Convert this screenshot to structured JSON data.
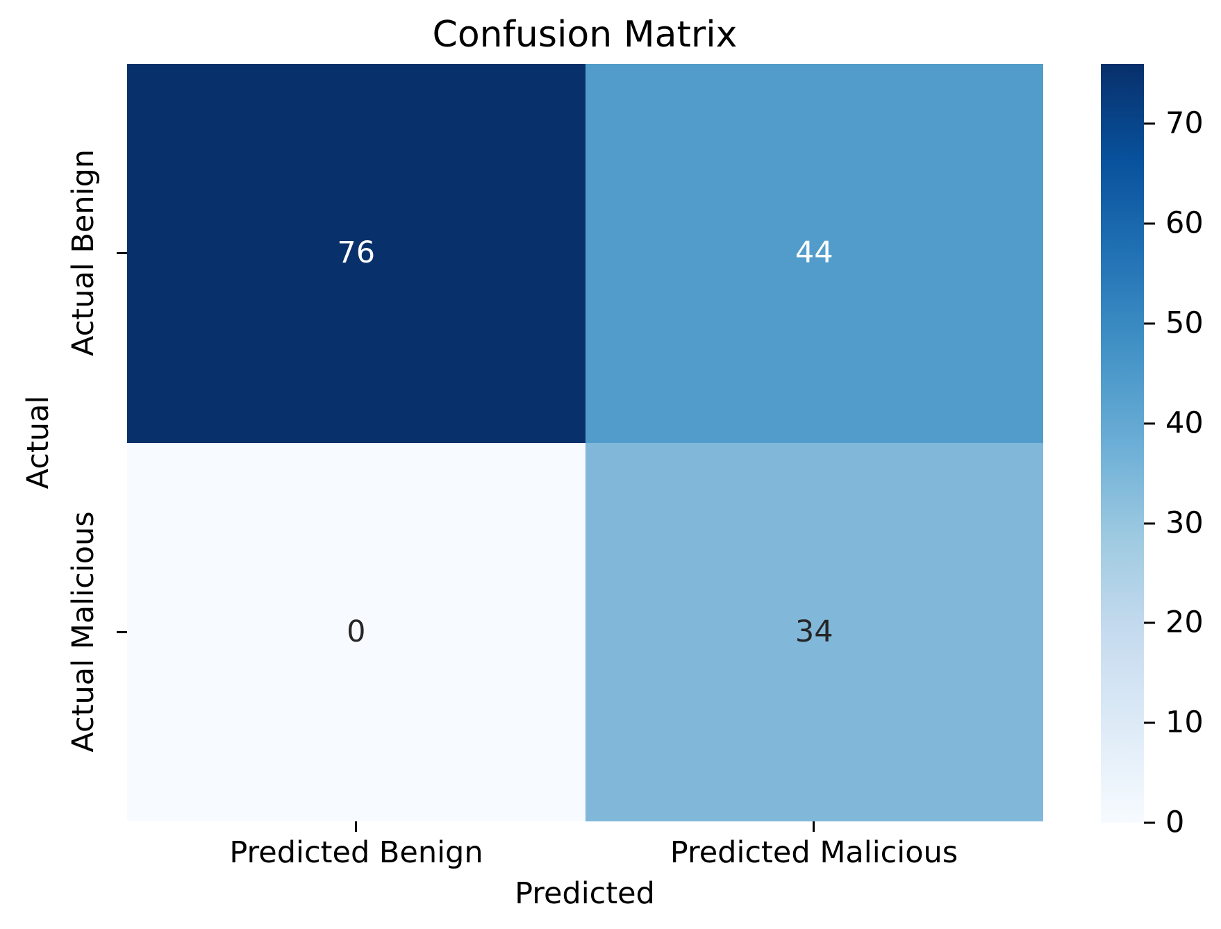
{
  "chart_data": {
    "type": "heatmap",
    "title": "Confusion Matrix",
    "xlabel": "Predicted",
    "ylabel": "Actual",
    "x_tick_labels": [
      "Predicted Benign",
      "Predicted Malicious"
    ],
    "y_tick_labels": [
      "Actual Benign",
      "Actual Malicious"
    ],
    "rows": [
      "Actual Benign",
      "Actual Malicious"
    ],
    "columns": [
      "Predicted Benign",
      "Predicted Malicious"
    ],
    "matrix": [
      [
        76,
        44
      ],
      [
        0,
        34
      ]
    ],
    "colormap": "Blues",
    "annotated": true,
    "grid": false,
    "cells": [
      {
        "row": "Actual Benign",
        "column": "Predicted Benign",
        "value": "76",
        "bg": "#08306b",
        "fg": "#ffffff"
      },
      {
        "row": "Actual Benign",
        "column": "Predicted Malicious",
        "value": "44",
        "bg": "#529ccb",
        "fg": "#ffffff"
      },
      {
        "row": "Actual Malicious",
        "column": "Predicted Benign",
        "value": "0",
        "bg": "#f7fbff",
        "fg": "#262626"
      },
      {
        "row": "Actual Malicious",
        "column": "Predicted Malicious",
        "value": "34",
        "bg": "#81b8da",
        "fg": "#262626"
      }
    ],
    "colorbar": {
      "position": "right",
      "vmin": 0,
      "vmax": 76,
      "ticks": [
        "0",
        "10",
        "20",
        "30",
        "40",
        "50",
        "60",
        "70"
      ],
      "gradient_stops": [
        {
          "pos": 0.0,
          "color": "#f7fbff"
        },
        {
          "pos": 0.125,
          "color": "#deebf7"
        },
        {
          "pos": 0.25,
          "color": "#c6dbef"
        },
        {
          "pos": 0.375,
          "color": "#9ecae1"
        },
        {
          "pos": 0.5,
          "color": "#6baed6"
        },
        {
          "pos": 0.625,
          "color": "#4292c6"
        },
        {
          "pos": 0.75,
          "color": "#2171b5"
        },
        {
          "pos": 0.875,
          "color": "#08519c"
        },
        {
          "pos": 1.0,
          "color": "#08306b"
        }
      ]
    }
  }
}
